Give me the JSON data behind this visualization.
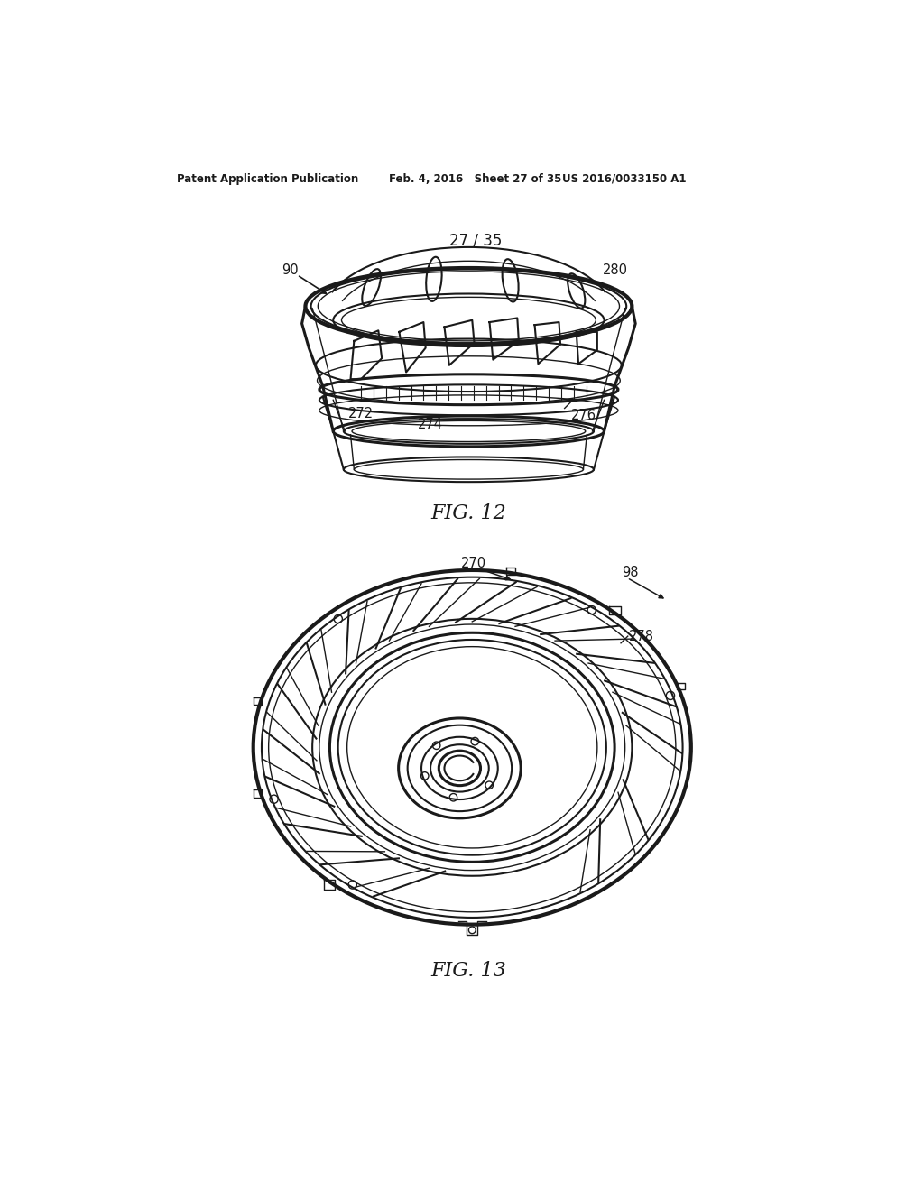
{
  "bg_color": "#ffffff",
  "line_color": "#1a1a1a",
  "header_left": "Patent Application Publication",
  "header_mid": "Feb. 4, 2016   Sheet 27 of 35",
  "header_right": "US 2016/0033150 A1",
  "sheet_label": "27 / 35",
  "fig12_label": "FIG. 12",
  "fig13_label": "FIG. 13"
}
